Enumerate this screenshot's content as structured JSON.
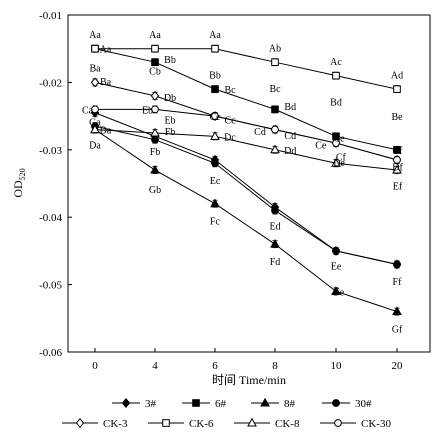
{
  "chart_data": {
    "type": "line",
    "title": "",
    "xlabel": "时间 Time/min",
    "ylabel": "OD",
    "ylabel_sub": "520",
    "categories": [
      "0",
      "4",
      "6",
      "8",
      "10",
      "20"
    ],
    "ylim": [
      -0.06,
      -0.01
    ],
    "yticks": [
      -0.01,
      -0.02,
      -0.03,
      -0.04,
      -0.05,
      -0.06
    ],
    "ytick_labels": [
      "-0.01",
      "-0.02",
      "-0.03",
      "-0.04",
      "-0.05",
      "-0.06"
    ],
    "grid": false,
    "legend_position": "bottom",
    "series": [
      {
        "name": "3#",
        "marker": "diamond-filled",
        "values": [
          -0.0245,
          -0.028,
          -0.0315,
          -0.0385,
          -0.045,
          -0.047
        ],
        "labels": [
          "Ca",
          "Fb",
          "Ec",
          "Ed",
          "Ee",
          "Ff"
        ]
      },
      {
        "name": "6#",
        "marker": "square-filled",
        "values": [
          -0.015,
          -0.017,
          -0.021,
          -0.024,
          -0.028,
          -0.03
        ],
        "labels": [
          "Aa",
          "Cb",
          "Bb",
          "Bd",
          "Cc",
          "Cf"
        ]
      },
      {
        "name": "8#",
        "marker": "triangle-filled",
        "values": [
          -0.027,
          -0.033,
          -0.038,
          -0.044,
          -0.051,
          -0.054
        ],
        "labels": [
          "Ga",
          "Gb",
          "Fc",
          "Fd",
          "Fe",
          "Gf"
        ]
      },
      {
        "name": "30#",
        "marker": "circle-filled",
        "values": [
          -0.0265,
          -0.0285,
          -0.032,
          -0.039,
          -0.045,
          -0.047
        ],
        "labels": [
          "Da",
          "Fb",
          "Ec",
          "Ed",
          "Ee",
          "Ff"
        ]
      },
      {
        "name": "CK-3",
        "marker": "diamond-open",
        "values": [
          -0.02,
          -0.022,
          -0.025,
          -0.027,
          -0.029,
          -0.0315
        ],
        "labels": [
          "Ba",
          "Db",
          "Cc",
          "Cd",
          "Ce",
          "Cf"
        ]
      },
      {
        "name": "CK-6",
        "marker": "square-open",
        "values": [
          -0.015,
          -0.015,
          -0.015,
          -0.017,
          -0.019,
          -0.021
        ],
        "labels": [
          "Aa",
          "Aa",
          "Aa",
          "Ab",
          "Ac",
          "Ad"
        ]
      },
      {
        "name": "CK-8",
        "marker": "triangle-open",
        "values": [
          -0.027,
          -0.0275,
          -0.028,
          -0.03,
          -0.032,
          -0.033
        ],
        "labels": [
          "Da",
          "Fb",
          "Dc",
          "Dd",
          "De",
          "Df"
        ]
      },
      {
        "name": "CK-30",
        "marker": "circle-open",
        "values": [
          -0.024,
          -0.024,
          -0.025,
          -0.027,
          -0.029,
          -0.0315
        ],
        "labels": [
          "Ea",
          "Eb",
          "Cc",
          "Cd",
          "Ce",
          "Cf"
        ]
      }
    ],
    "annotations": [
      {
        "text": "Aa",
        "x": 0,
        "y": -0.0128
      },
      {
        "text": "Aa",
        "x": 0.7,
        "y": -0.015
      },
      {
        "text": "Aa",
        "x": 4,
        "y": -0.0128
      },
      {
        "text": "Aa",
        "x": 6,
        "y": -0.0128
      },
      {
        "text": "Ab",
        "x": 8,
        "y": -0.0148
      },
      {
        "text": "Ac",
        "x": 10,
        "y": -0.0168
      },
      {
        "text": "Ad",
        "x": 20,
        "y": -0.0188
      },
      {
        "text": "Cb",
        "x": 4,
        "y": -0.0182
      },
      {
        "text": "Bb",
        "x": 4.5,
        "y": -0.0165
      },
      {
        "text": "Bb",
        "x": 6,
        "y": -0.0188
      },
      {
        "text": "Bc",
        "x": 6.5,
        "y": -0.021
      },
      {
        "text": "Bc",
        "x": 8,
        "y": -0.0208
      },
      {
        "text": "Bd",
        "x": 8.5,
        "y": -0.0235
      },
      {
        "text": "Bd",
        "x": 10,
        "y": -0.0228
      },
      {
        "text": "Be",
        "x": 20,
        "y": -0.025
      },
      {
        "text": "Cf",
        "x": 20.5,
        "y": -0.03
      },
      {
        "text": "Ba",
        "x": 0,
        "y": -0.0178
      },
      {
        "text": "Ba",
        "x": 0.7,
        "y": -0.0198
      },
      {
        "text": "Db",
        "x": 4.5,
        "y": -0.0222
      },
      {
        "text": "Cc",
        "x": 6,
        "y": -0.025
      },
      {
        "text": "Cc",
        "x": 6.5,
        "y": -0.0255
      },
      {
        "text": "Cd",
        "x": 7.5,
        "y": -0.0272
      },
      {
        "text": "Cd",
        "x": 8.5,
        "y": -0.0278
      },
      {
        "text": "Ce",
        "x": 9.5,
        "y": -0.0292
      },
      {
        "text": "Ce",
        "x": 10.5,
        "y": -0.0282
      },
      {
        "text": "Cf",
        "x": 10.8,
        "y": -0.031
      },
      {
        "text": "Df",
        "x": 20.5,
        "y": -0.0325
      },
      {
        "text": "Ef",
        "x": 20.5,
        "y": -0.0353
      },
      {
        "text": "Ca",
        "x": -0.5,
        "y": -0.024
      },
      {
        "text": "Ga",
        "x": 0,
        "y": -0.0258
      },
      {
        "text": "Eb",
        "x": 3.5,
        "y": -0.024
      },
      {
        "text": "Eb",
        "x": 4.5,
        "y": -0.0255
      },
      {
        "text": "Da",
        "x": 0.7,
        "y": -0.027
      },
      {
        "text": "Da",
        "x": 0,
        "y": -0.0292
      },
      {
        "text": "Fb",
        "x": 4.5,
        "y": -0.0272
      },
      {
        "text": "Fb",
        "x": 4,
        "y": -0.0302
      },
      {
        "text": "Dc",
        "x": 6.5,
        "y": -0.028
      },
      {
        "text": "Dd",
        "x": 8.5,
        "y": -0.03
      },
      {
        "text": "De",
        "x": 10.5,
        "y": -0.0318
      },
      {
        "text": "Gb",
        "x": 4,
        "y": -0.0358
      },
      {
        "text": "Ec",
        "x": 6,
        "y": -0.0345
      },
      {
        "text": "Fc",
        "x": 6,
        "y": -0.0405
      },
      {
        "text": "Ed",
        "x": 8,
        "y": -0.0412
      },
      {
        "text": "Fd",
        "x": 8,
        "y": -0.0465
      },
      {
        "text": "Ee",
        "x": 10,
        "y": -0.0472
      },
      {
        "text": "Fe",
        "x": 10.5,
        "y": -0.051
      },
      {
        "text": "Ff",
        "x": 20,
        "y": -0.0495
      },
      {
        "text": "Gf",
        "x": 20,
        "y": -0.0565
      }
    ]
  }
}
